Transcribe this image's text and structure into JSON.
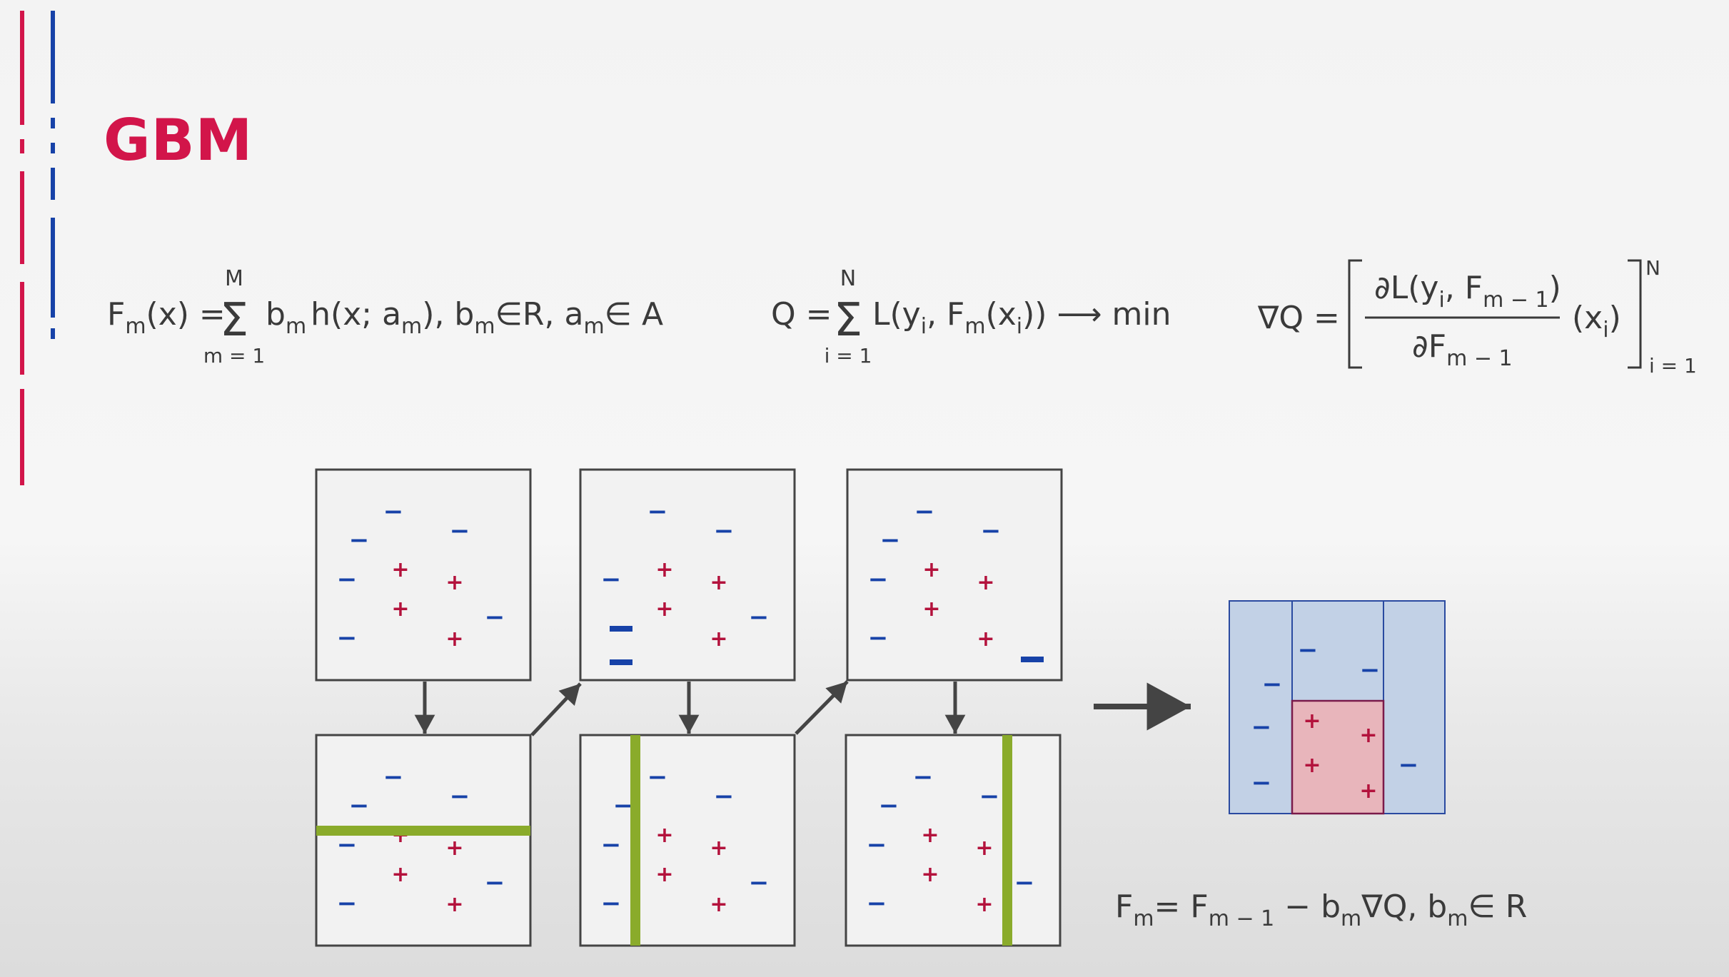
{
  "title": "GBM",
  "colors": {
    "accent_red": "#d2154a",
    "accent_blue": "#1742a8",
    "split_green": "#8aab2b",
    "plus_color": "#b3123c",
    "minus_color": "#1742a8"
  },
  "formulas": {
    "f1": {
      "lhs": "F",
      "lhs_sub": "m",
      "lhs_arg": "(x) =",
      "sigma_top": "M",
      "sigma_bottom": "m = 1",
      "term_b": "b",
      "term_b_sub": "m",
      "term_h": "h(x; a",
      "term_h_sub": "m",
      "rest1": "), b",
      "rest1_sub": "m",
      "rest2": "∈R, a",
      "rest2_sub": "m",
      "rest3": "∈ A"
    },
    "f2": {
      "lhs": "Q =",
      "sigma_top": "N",
      "sigma_bottom": "i = 1",
      "p1": "L(y",
      "p1_sub": "i",
      "p2": ", F",
      "p2_sub": "m",
      "p3": "(x",
      "p3_sub": "i",
      "p4": ")) ⟶  min"
    },
    "f3": {
      "lhs": "∇Q =",
      "num_a": "∂L(y",
      "num_a_sub": "i",
      "num_b": ", F",
      "num_b_sub": "m − 1",
      "num_c": ")",
      "den_a": "∂F",
      "den_a_sub": "m − 1",
      "tail": "(x",
      "tail_sub": "i",
      "tail_end": ")",
      "sup": "N",
      "sub": "i = 1"
    },
    "f4": {
      "a": "F",
      "a_sub": "m",
      "b": "= F",
      "b_sub": "m − 1",
      "c": " − b",
      "c_sub": "m",
      "d": "∇Q, b",
      "d_sub": "m",
      "e": "∈ R"
    }
  },
  "diagram": {
    "plus": "+",
    "minus": "−"
  }
}
